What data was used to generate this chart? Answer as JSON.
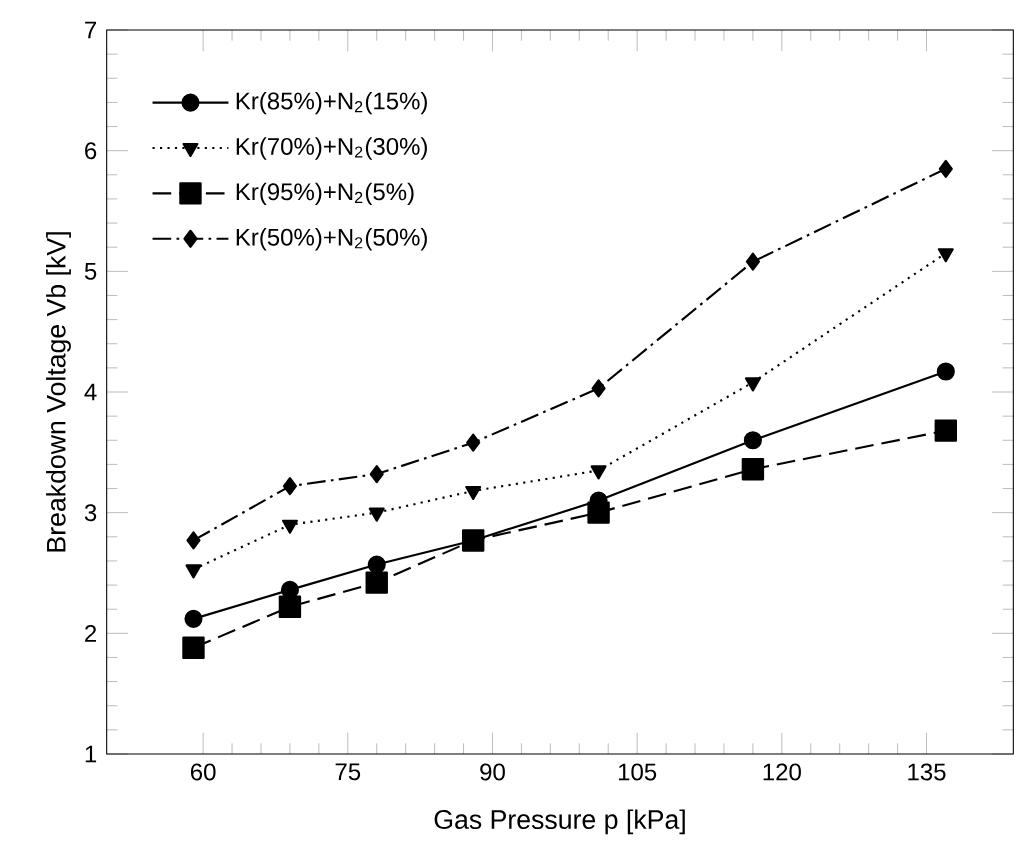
{
  "chart_data": {
    "type": "line",
    "xlabel": "Gas Pressure p [kPa]",
    "ylabel": "Breakdown Voltage Vb [kV]",
    "x": [
      59,
      69,
      78,
      88,
      101,
      117,
      137
    ],
    "series": [
      {
        "name": "Kr(85%)+N$_{2}$(15%)",
        "color": "#000000",
        "marker": "circle",
        "line_style": "solid",
        "values": [
          2.12,
          2.36,
          2.57,
          2.77,
          3.1,
          3.6,
          4.17
        ]
      },
      {
        "name": "Kr(70%)+N$_{2}$(30%)",
        "color": "#000000",
        "marker": "triangle",
        "line_style": "dotted",
        "values": [
          2.53,
          2.9,
          3.0,
          3.18,
          3.35,
          4.08,
          5.15
        ]
      },
      {
        "name": "Kr(95%)+N$_{2}$(5%)",
        "color": "#000000",
        "marker": "square",
        "line_style": "dashed",
        "values": [
          1.88,
          2.22,
          2.42,
          2.77,
          3.0,
          3.36,
          3.68
        ]
      },
      {
        "name": "Kr(50%)+N$_{2}$(50%)",
        "color": "#000000",
        "marker": "diamond",
        "line_style": "dashdot",
        "values": [
          2.77,
          3.22,
          3.32,
          3.58,
          4.03,
          5.08,
          5.85
        ]
      }
    ],
    "xlim": [
      50,
      144
    ],
    "xticks": [
      60,
      75,
      90,
      105,
      120,
      135
    ],
    "ylim": [
      1,
      7
    ],
    "yticks": [
      1,
      2,
      3,
      4,
      5,
      6,
      7
    ],
    "legend": "top left",
    "grid": false
  }
}
